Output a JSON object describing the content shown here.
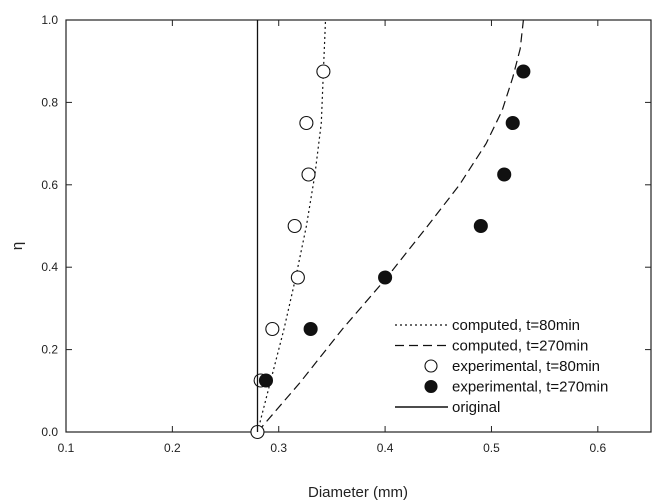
{
  "chart_data": {
    "type": "line",
    "xlabel": "Diameter (mm)",
    "ylabel": "η",
    "xlim": [
      0.1,
      0.65
    ],
    "ylim": [
      0.0,
      1.0
    ],
    "x_ticks": [
      "0.1",
      "0.2",
      "0.3",
      "0.4",
      "0.5",
      "0.6"
    ],
    "y_ticks": [
      "0.0",
      "0.2",
      "0.4",
      "0.6",
      "0.8",
      "1.0"
    ],
    "legend_position": "bottom-right",
    "series": [
      {
        "name": "computed, t=80min",
        "kind": "line",
        "style": "dotted",
        "color": "#111111",
        "x": [
          0.28,
          0.292,
          0.305,
          0.316,
          0.326,
          0.334,
          0.34,
          0.344
        ],
        "y": [
          0.0,
          0.12,
          0.25,
          0.375,
          0.5,
          0.625,
          0.75,
          1.0
        ]
      },
      {
        "name": "computed, t=270min",
        "kind": "line",
        "style": "dashed",
        "color": "#111111",
        "x": [
          0.28,
          0.32,
          0.36,
          0.4,
          0.44,
          0.47,
          0.495,
          0.51,
          0.52,
          0.527,
          0.53
        ],
        "y": [
          0.0,
          0.12,
          0.25,
          0.37,
          0.5,
          0.6,
          0.7,
          0.78,
          0.86,
          0.93,
          1.0
        ]
      },
      {
        "name": "experimental, t=80min",
        "kind": "scatter",
        "marker": "open-circle",
        "color": "#111111",
        "x": [
          0.28,
          0.283,
          0.294,
          0.318,
          0.315,
          0.328,
          0.326,
          0.342
        ],
        "y": [
          0.0,
          0.125,
          0.25,
          0.375,
          0.5,
          0.625,
          0.75,
          0.875
        ]
      },
      {
        "name": "experimental, t=270min",
        "kind": "scatter",
        "marker": "filled-circle",
        "color": "#111111",
        "x": [
          0.288,
          0.33,
          0.4,
          0.49,
          0.512,
          0.52,
          0.53
        ],
        "y": [
          0.125,
          0.25,
          0.375,
          0.5,
          0.625,
          0.75,
          0.875
        ]
      },
      {
        "name": "original",
        "kind": "line",
        "style": "solid",
        "color": "#111111",
        "x": [
          0.28,
          0.28
        ],
        "y": [
          0.0,
          1.0
        ]
      }
    ]
  }
}
